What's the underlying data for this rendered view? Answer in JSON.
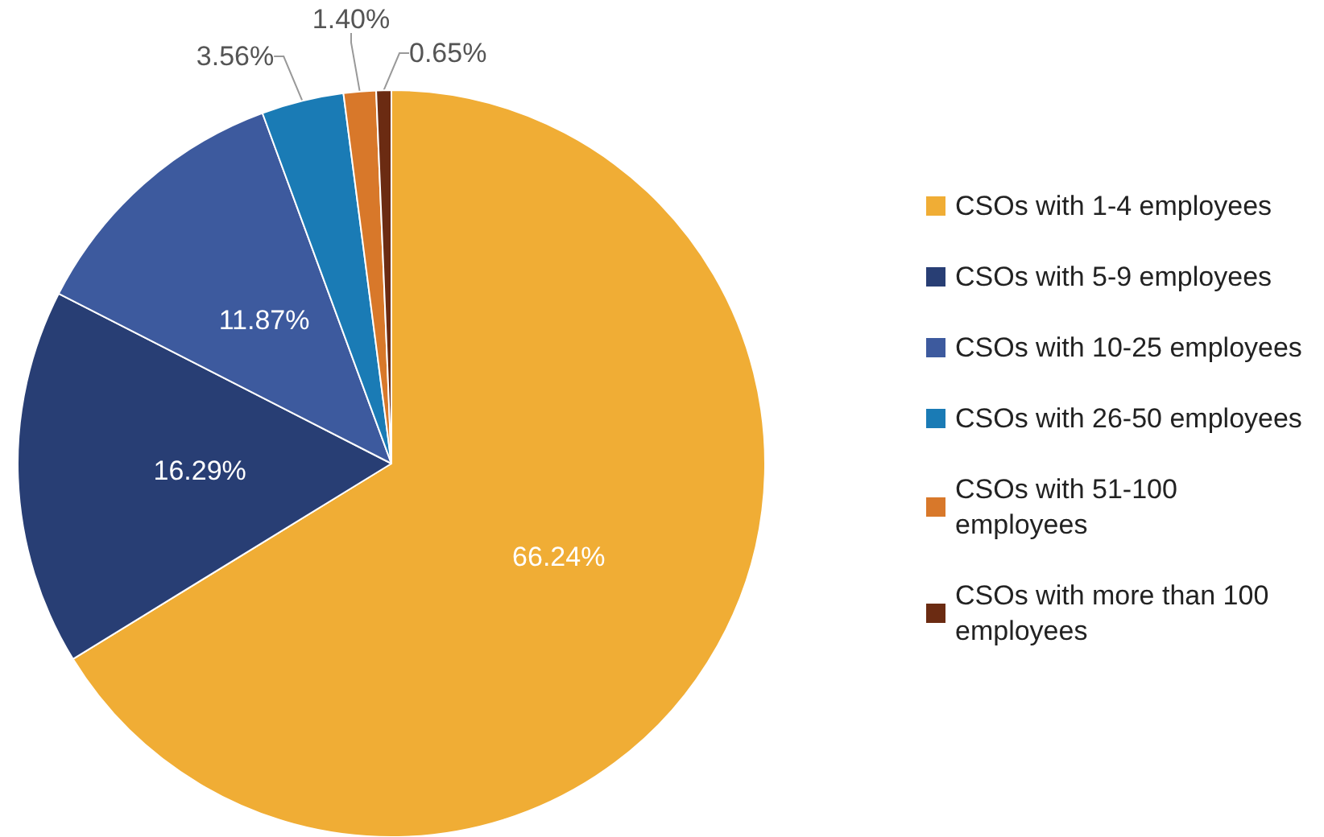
{
  "chart_data": {
    "type": "pie",
    "categories": [
      "CSOs with 1-4 employees",
      "CSOs with 5-9 employees",
      "CSOs with 10-25 employees",
      "CSOs with 26-50 employees",
      "CSOs with 51-100 employees",
      "CSOs with more than 100 employees"
    ],
    "values": [
      66.24,
      16.29,
      11.87,
      3.56,
      1.4,
      0.65
    ],
    "value_labels": [
      "66.24%",
      "16.29%",
      "11.87%",
      "3.56%",
      "1.40%",
      "0.65%"
    ],
    "colors": [
      "#f0ad35",
      "#283e74",
      "#3d5a9e",
      "#1a7bb5",
      "#d8782a",
      "#6b2b12"
    ],
    "legend": "right"
  }
}
